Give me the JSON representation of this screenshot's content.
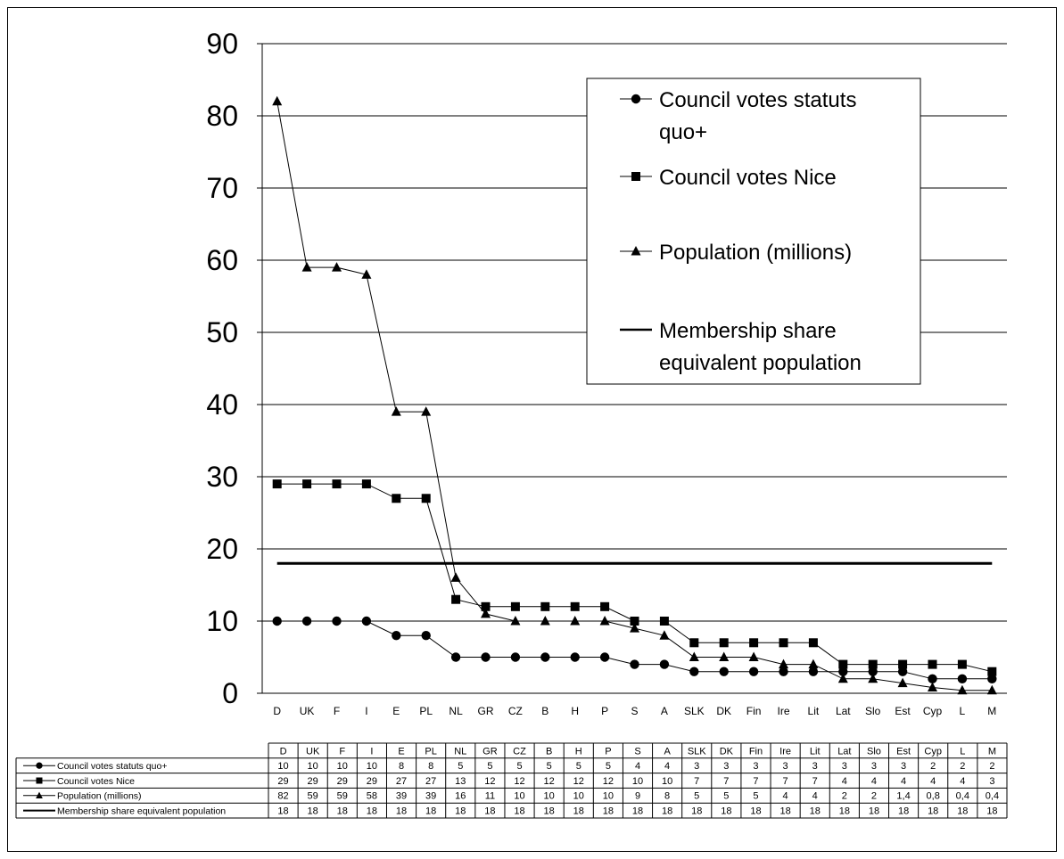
{
  "chart_data": {
    "type": "line",
    "categories": [
      "D",
      "UK",
      "F",
      "I",
      "E",
      "PL",
      "NL",
      "GR",
      "CZ",
      "B",
      "H",
      "P",
      "S",
      "A",
      "SLK",
      "DK",
      "Fin",
      "Ire",
      "Lit",
      "Lat",
      "Slo",
      "Est",
      "Cyp",
      "L",
      "M"
    ],
    "ylim": [
      0,
      90
    ],
    "yticks": [
      0,
      10,
      20,
      30,
      40,
      50,
      60,
      70,
      80,
      90
    ],
    "grid": true,
    "legend_position": "top-right",
    "series": [
      {
        "name": "Council votes statuts quo+",
        "marker": "circle",
        "values": [
          10,
          10,
          10,
          10,
          8,
          8,
          5,
          5,
          5,
          5,
          5,
          5,
          4,
          4,
          3,
          3,
          3,
          3,
          3,
          3,
          3,
          3,
          2,
          2,
          2
        ]
      },
      {
        "name": "Council votes Nice",
        "marker": "square",
        "values": [
          29,
          29,
          29,
          29,
          27,
          27,
          13,
          12,
          12,
          12,
          12,
          12,
          10,
          10,
          7,
          7,
          7,
          7,
          7,
          4,
          4,
          4,
          4,
          4,
          3
        ]
      },
      {
        "name": "Population (millions)",
        "marker": "triangle",
        "values": [
          82,
          59,
          59,
          58,
          39,
          39,
          16,
          11,
          10,
          10,
          10,
          10,
          9,
          8,
          5,
          5,
          5,
          4,
          4,
          2,
          2,
          1.4,
          0.8,
          0.4,
          0.4
        ]
      },
      {
        "name": "Membership share equivalent population",
        "marker": "none",
        "values": [
          18,
          18,
          18,
          18,
          18,
          18,
          18,
          18,
          18,
          18,
          18,
          18,
          18,
          18,
          18,
          18,
          18,
          18,
          18,
          18,
          18,
          18,
          18,
          18,
          18
        ]
      }
    ],
    "legend": [
      {
        "lines": [
          "Council votes statuts",
          "quo+"
        ]
      },
      {
        "lines": [
          "Council votes Nice"
        ]
      },
      {
        "lines": [
          "Population (millions)"
        ]
      },
      {
        "lines": [
          "Membership share",
          "equivalent population"
        ]
      }
    ],
    "table": {
      "row_labels": [
        "Council votes statuts quo+",
        "Council votes Nice",
        "Population (millions)",
        "Membership share equivalent population"
      ],
      "rows": [
        [
          "10",
          "10",
          "10",
          "10",
          "8",
          "8",
          "5",
          "5",
          "5",
          "5",
          "5",
          "5",
          "4",
          "4",
          "3",
          "3",
          "3",
          "3",
          "3",
          "3",
          "3",
          "3",
          "2",
          "2",
          "2"
        ],
        [
          "29",
          "29",
          "29",
          "29",
          "27",
          "27",
          "13",
          "12",
          "12",
          "12",
          "12",
          "12",
          "10",
          "10",
          "7",
          "7",
          "7",
          "7",
          "7",
          "4",
          "4",
          "4",
          "4",
          "4",
          "3"
        ],
        [
          "82",
          "59",
          "59",
          "58",
          "39",
          "39",
          "16",
          "11",
          "10",
          "10",
          "10",
          "10",
          "9",
          "8",
          "5",
          "5",
          "5",
          "4",
          "4",
          "2",
          "2",
          "1,4",
          "0,8",
          "0,4",
          "0,4"
        ],
        [
          "18",
          "18",
          "18",
          "18",
          "18",
          "18",
          "18",
          "18",
          "18",
          "18",
          "18",
          "18",
          "18",
          "18",
          "18",
          "18",
          "18",
          "18",
          "18",
          "18",
          "18",
          "18",
          "18",
          "18",
          "18"
        ]
      ]
    }
  }
}
